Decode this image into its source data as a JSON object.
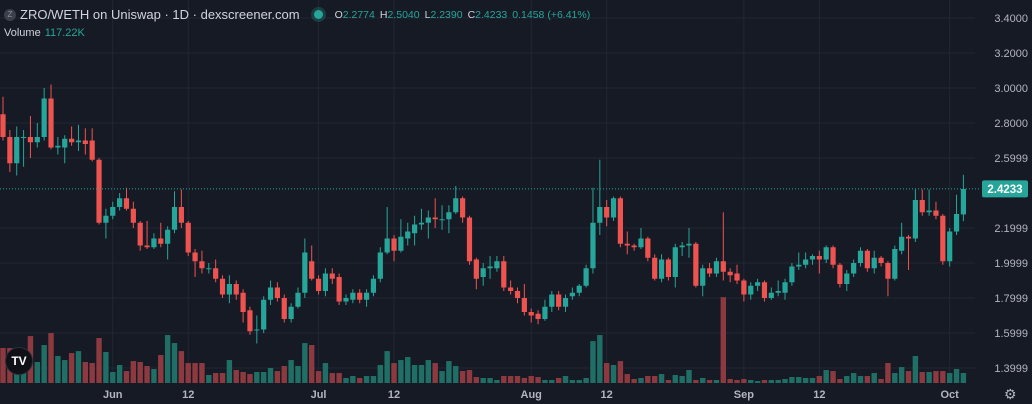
{
  "header": {
    "token_icon": "Z",
    "title": "ZRO/WETH on Uniswap · 1D · dexscreener.com",
    "status": "live",
    "ohlc": {
      "o_label": "O",
      "o": "2.2774",
      "h_label": "H",
      "h": "2.5040",
      "l_label": "L",
      "l": "2.2390",
      "c_label": "C",
      "c": "2.4233",
      "change": "0.1458 (+6.41%)"
    },
    "volume_label": "Volume",
    "volume_value": "117.22K"
  },
  "logo": "TV",
  "settings_icon": "gear-icon",
  "colors": {
    "background": "#161a25",
    "up": "#26a69a",
    "down": "#ef5350",
    "volume_up": "#1f6f66",
    "volume_down": "#8c3a40",
    "grid": "#232733",
    "axis_text": "#b2b5be"
  },
  "chart_data": {
    "type": "candlestick",
    "title": "ZRO/WETH on Uniswap · 1D · dexscreener.com",
    "ylim": [
      1.32,
      3.45
    ],
    "grid": true,
    "y_ticks": [
      "3.4000",
      "3.2000",
      "3.0000",
      "2.8000",
      "2.5999",
      "2.1999",
      "1.9999",
      "1.7999",
      "1.5999",
      "1.3999"
    ],
    "x_ticks": [
      {
        "label": "Jun",
        "date": "Jun 1"
      },
      {
        "label": "12",
        "date": "Jun 12"
      },
      {
        "label": "Jul",
        "date": "Jul 1"
      },
      {
        "label": "12",
        "date": "Jul 12"
      },
      {
        "label": "Aug",
        "date": "Aug 1"
      },
      {
        "label": "12",
        "date": "Aug 12"
      },
      {
        "label": "Sep",
        "date": "Sep 1"
      },
      {
        "label": "12",
        "date": "Sep 12"
      },
      {
        "label": "Oct",
        "date": "Oct 1"
      }
    ],
    "current_price": "2.4233",
    "volume_unit": "K",
    "columns": [
      "date",
      "open",
      "high",
      "low",
      "close",
      "volume"
    ],
    "candles": [
      [
        "May 16",
        2.85,
        2.95,
        2.7,
        2.72,
        410
      ],
      [
        "May 17",
        2.72,
        2.76,
        2.52,
        2.57,
        410
      ],
      [
        "May 18",
        2.57,
        2.78,
        2.5,
        2.72,
        257
      ],
      [
        "May 19",
        2.72,
        2.76,
        2.55,
        2.72,
        293
      ],
      [
        "May 20",
        2.72,
        2.84,
        2.6,
        2.69,
        550
      ],
      [
        "May 21",
        2.69,
        2.8,
        2.66,
        2.72,
        246
      ],
      [
        "May 22",
        2.72,
        3.0,
        2.7,
        2.94,
        445
      ],
      [
        "May 23",
        2.94,
        3.02,
        2.65,
        2.66,
        585
      ],
      [
        "May 24",
        2.66,
        2.72,
        2.62,
        2.67,
        316
      ],
      [
        "May 25",
        2.66,
        2.73,
        2.57,
        2.71,
        269
      ],
      [
        "May 26",
        2.71,
        2.78,
        2.67,
        2.69,
        351
      ],
      [
        "May 27",
        2.69,
        2.79,
        2.64,
        2.7,
        374
      ],
      [
        "May 28",
        2.7,
        2.77,
        2.62,
        2.68,
        246
      ],
      [
        "May 29",
        2.7,
        2.77,
        2.58,
        2.59,
        234
      ],
      [
        "May 30",
        2.59,
        2.6,
        2.22,
        2.23,
        527
      ],
      [
        "May 31",
        2.23,
        2.31,
        2.14,
        2.27,
        363
      ],
      [
        "Jun 1",
        2.27,
        2.35,
        2.25,
        2.32,
        129
      ],
      [
        "Jun 2",
        2.32,
        2.4,
        2.3,
        2.37,
        211
      ],
      [
        "Jun 3",
        2.37,
        2.43,
        2.3,
        2.31,
        140
      ],
      [
        "Jun 4",
        2.31,
        2.35,
        2.2,
        2.23,
        257
      ],
      [
        "Jun 5",
        2.23,
        2.24,
        2.07,
        2.1,
        246
      ],
      [
        "Jun 6",
        2.1,
        2.24,
        2.08,
        2.09,
        199
      ],
      [
        "Jun 7",
        2.09,
        2.17,
        2.08,
        2.14,
        164
      ],
      [
        "Jun 8",
        2.14,
        2.23,
        2.09,
        2.11,
        328
      ],
      [
        "Jun 9",
        2.11,
        2.21,
        2.02,
        2.19,
        562
      ],
      [
        "Jun 10",
        2.19,
        2.41,
        2.17,
        2.32,
        468
      ],
      [
        "Jun 11",
        2.32,
        2.42,
        2.2,
        2.23,
        374
      ],
      [
        "Jun 12",
        2.23,
        2.24,
        2.04,
        2.06,
        234
      ],
      [
        "Jun 13",
        2.06,
        2.08,
        1.92,
        2.01,
        234
      ],
      [
        "Jun 14",
        2.01,
        2.07,
        1.94,
        1.97,
        234
      ],
      [
        "Jun 15",
        1.97,
        2.0,
        1.94,
        1.97,
        94
      ],
      [
        "Jun 16",
        1.97,
        2.02,
        1.89,
        1.91,
        117
      ],
      [
        "Jun 17",
        1.91,
        1.93,
        1.8,
        1.82,
        117
      ],
      [
        "Jun 18",
        1.82,
        1.93,
        1.77,
        1.88,
        269
      ],
      [
        "Jun 19",
        1.88,
        1.9,
        1.79,
        1.82,
        152
      ],
      [
        "Jun 20",
        1.83,
        1.85,
        1.66,
        1.72,
        129
      ],
      [
        "Jun 21",
        1.73,
        1.75,
        1.59,
        1.61,
        105
      ],
      [
        "Jun 22",
        1.62,
        1.7,
        1.54,
        1.62,
        129
      ],
      [
        "Jun 23",
        1.62,
        1.81,
        1.6,
        1.79,
        129
      ],
      [
        "Jun 24",
        1.79,
        1.9,
        1.76,
        1.86,
        176
      ],
      [
        "Jun 25",
        1.86,
        1.89,
        1.78,
        1.8,
        140
      ],
      [
        "Jun 26",
        1.8,
        1.82,
        1.66,
        1.68,
        199
      ],
      [
        "Jun 27",
        1.68,
        1.77,
        1.66,
        1.75,
        269
      ],
      [
        "Jun 28",
        1.75,
        1.86,
        1.74,
        1.83,
        199
      ],
      [
        "Jun 29",
        1.83,
        2.14,
        1.8,
        2.06,
        468
      ],
      [
        "Jun 30",
        2.01,
        2.1,
        1.9,
        1.91,
        445
      ],
      [
        "Jul 1",
        1.91,
        1.93,
        1.82,
        1.84,
        140
      ],
      [
        "Jul 2",
        1.84,
        1.97,
        1.81,
        1.94,
        234
      ],
      [
        "Jul 3",
        1.94,
        1.97,
        1.88,
        1.91,
        117
      ],
      [
        "Jul 4",
        1.92,
        1.94,
        1.76,
        1.78,
        117
      ],
      [
        "Jul 5",
        1.78,
        1.82,
        1.76,
        1.8,
        59
      ],
      [
        "Jul 6",
        1.79,
        1.85,
        1.77,
        1.83,
        82
      ],
      [
        "Jul 7",
        1.83,
        1.85,
        1.77,
        1.79,
        59
      ],
      [
        "Jul 8",
        1.79,
        1.85,
        1.75,
        1.83,
        82
      ],
      [
        "Jul 9",
        1.83,
        1.93,
        1.81,
        1.91,
        82
      ],
      [
        "Jul 10",
        1.91,
        2.09,
        1.89,
        2.06,
        211
      ],
      [
        "Jul 11",
        2.06,
        2.32,
        2.05,
        2.14,
        374
      ],
      [
        "Jul 12",
        2.14,
        2.16,
        2.01,
        2.07,
        234
      ],
      [
        "Jul 13",
        2.07,
        2.25,
        2.06,
        2.15,
        269
      ],
      [
        "Jul 14",
        2.14,
        2.23,
        2.1,
        2.18,
        304
      ],
      [
        "Jul 15",
        2.17,
        2.27,
        2.1,
        2.22,
        211
      ],
      [
        "Jul 16",
        2.22,
        2.31,
        2.19,
        2.23,
        211
      ],
      [
        "Jul 17",
        2.23,
        2.3,
        2.14,
        2.26,
        269
      ],
      [
        "Jul 18",
        2.26,
        2.37,
        2.2,
        2.25,
        234
      ],
      [
        "Jul 19",
        2.25,
        2.33,
        2.19,
        2.25,
        140
      ],
      [
        "Jul 20",
        2.25,
        2.33,
        2.17,
        2.29,
        257
      ],
      [
        "Jul 21",
        2.29,
        2.44,
        2.28,
        2.37,
        199
      ],
      [
        "Jul 22",
        2.37,
        2.38,
        2.23,
        2.26,
        140
      ],
      [
        "Jul 23",
        2.26,
        2.27,
        1.99,
        2.01,
        152
      ],
      [
        "Jul 24",
        2.02,
        2.03,
        1.85,
        1.91,
        70
      ],
      [
        "Jul 25",
        1.92,
        2.0,
        1.87,
        1.97,
        59
      ],
      [
        "Jul 26",
        1.97,
        2.04,
        1.91,
        1.98,
        59
      ],
      [
        "Jul 27",
        1.97,
        2.04,
        1.95,
        2.01,
        35
      ],
      [
        "Jul 28",
        2.01,
        2.04,
        1.84,
        1.86,
        82
      ],
      [
        "Jul 29",
        1.86,
        1.9,
        1.82,
        1.84,
        82
      ],
      [
        "Jul 30",
        1.84,
        1.86,
        1.77,
        1.8,
        82
      ],
      [
        "Jul 31",
        1.8,
        1.88,
        1.7,
        1.72,
        59
      ],
      [
        "Aug 1",
        1.72,
        1.74,
        1.66,
        1.7,
        82
      ],
      [
        "Aug 2",
        1.71,
        1.73,
        1.65,
        1.68,
        70
      ],
      [
        "Aug 3",
        1.68,
        1.79,
        1.67,
        1.75,
        35
      ],
      [
        "Aug 4",
        1.75,
        1.84,
        1.72,
        1.82,
        35
      ],
      [
        "Aug 5",
        1.82,
        1.84,
        1.73,
        1.75,
        59
      ],
      [
        "Aug 6",
        1.75,
        1.82,
        1.72,
        1.8,
        82
      ],
      [
        "Aug 7",
        1.81,
        1.86,
        1.79,
        1.83,
        35
      ],
      [
        "Aug 8",
        1.83,
        1.88,
        1.81,
        1.87,
        35
      ],
      [
        "Aug 9",
        1.87,
        1.99,
        1.86,
        1.97,
        59
      ],
      [
        "Aug 10",
        1.97,
        2.43,
        1.94,
        2.23,
        491
      ],
      [
        "Aug 11",
        2.23,
        2.59,
        2.16,
        2.32,
        562
      ],
      [
        "Aug 12",
        2.32,
        2.36,
        2.21,
        2.26,
        234
      ],
      [
        "Aug 13",
        2.26,
        2.38,
        2.24,
        2.37,
        211
      ],
      [
        "Aug 14",
        2.37,
        2.38,
        2.09,
        2.11,
        257
      ],
      [
        "Aug 15",
        2.11,
        2.18,
        2.05,
        2.1,
        105
      ],
      [
        "Aug 16",
        2.1,
        2.11,
        2.07,
        2.09,
        47
      ],
      [
        "Aug 17",
        2.09,
        2.2,
        2.08,
        2.14,
        59
      ],
      [
        "Aug 18",
        2.14,
        2.15,
        2.01,
        2.03,
        82
      ],
      [
        "Aug 19",
        2.03,
        2.05,
        1.9,
        1.91,
        82
      ],
      [
        "Aug 20",
        1.91,
        2.05,
        1.89,
        2.02,
        105
      ],
      [
        "Aug 21",
        2.02,
        2.03,
        1.9,
        1.92,
        35
      ],
      [
        "Aug 22",
        1.92,
        2.11,
        1.86,
        2.09,
        94
      ],
      [
        "Aug 23",
        2.09,
        2.12,
        2.04,
        2.1,
        82
      ],
      [
        "Aug 24",
        2.1,
        2.2,
        2.03,
        2.11,
        152
      ],
      [
        "Aug 25",
        2.11,
        2.12,
        1.86,
        1.87,
        35
      ],
      [
        "Aug 26",
        1.87,
        1.99,
        1.81,
        1.97,
        59
      ],
      [
        "Aug 27",
        1.97,
        2.0,
        1.92,
        1.94,
        35
      ],
      [
        "Aug 28",
        1.94,
        2.03,
        1.92,
        2.01,
        35
      ],
      [
        "Aug 29",
        2.01,
        2.29,
        1.9,
        1.95,
        1006
      ],
      [
        "Aug 30",
        1.95,
        1.97,
        1.89,
        1.93,
        47
      ],
      [
        "Aug 31",
        1.94,
        1.99,
        1.88,
        1.9,
        35
      ],
      [
        "Sep 1",
        1.9,
        1.91,
        1.78,
        1.82,
        47
      ],
      [
        "Sep 2",
        1.82,
        1.89,
        1.79,
        1.87,
        35
      ],
      [
        "Sep 3",
        1.87,
        1.91,
        1.84,
        1.89,
        23
      ],
      [
        "Sep 4",
        1.89,
        1.9,
        1.78,
        1.8,
        35
      ],
      [
        "Sep 5",
        1.8,
        1.86,
        1.79,
        1.83,
        35
      ],
      [
        "Sep 6",
        1.83,
        1.9,
        1.81,
        1.84,
        35
      ],
      [
        "Sep 7",
        1.83,
        1.91,
        1.79,
        1.89,
        47
      ],
      [
        "Sep 8",
        1.89,
        2.0,
        1.87,
        1.98,
        70
      ],
      [
        "Sep 9",
        1.98,
        2.06,
        1.96,
        1.99,
        70
      ],
      [
        "Sep 10",
        1.99,
        2.06,
        1.97,
        2.02,
        59
      ],
      [
        "Sep 11",
        2.02,
        2.05,
        1.99,
        2.04,
        59
      ],
      [
        "Sep 12",
        2.04,
        2.07,
        1.94,
        2.02,
        82
      ],
      [
        "Sep 13",
        2.02,
        2.1,
        2.0,
        2.09,
        152
      ],
      [
        "Sep 14",
        2.09,
        2.1,
        1.97,
        1.99,
        140
      ],
      [
        "Sep 15",
        1.99,
        2.0,
        1.86,
        1.88,
        47
      ],
      [
        "Sep 16",
        1.88,
        1.96,
        1.84,
        1.94,
        82
      ],
      [
        "Sep 17",
        1.94,
        2.02,
        1.92,
        2.0,
        117
      ],
      [
        "Sep 18",
        2.0,
        2.09,
        1.98,
        2.07,
        82
      ],
      [
        "Sep 19",
        2.07,
        2.08,
        1.95,
        1.97,
        82
      ],
      [
        "Sep 20",
        1.97,
        2.07,
        1.94,
        2.03,
        117
      ],
      [
        "Sep 21",
        2.03,
        2.04,
        1.98,
        2.0,
        47
      ],
      [
        "Sep 22",
        2.0,
        2.01,
        1.81,
        1.91,
        234
      ],
      [
        "Sep 23",
        1.91,
        2.1,
        1.9,
        2.08,
        117
      ],
      [
        "Sep 24",
        2.07,
        2.23,
        2.05,
        2.15,
        187
      ],
      [
        "Sep 25",
        2.15,
        2.16,
        1.96,
        2.14,
        140
      ],
      [
        "Sep 26",
        2.14,
        2.42,
        2.12,
        2.36,
        316
      ],
      [
        "Sep 27",
        2.36,
        2.42,
        2.27,
        2.29,
        129
      ],
      [
        "Sep 28",
        2.29,
        2.42,
        2.27,
        2.3,
        129
      ],
      [
        "Sep 29",
        2.3,
        2.35,
        2.25,
        2.27,
        140
      ],
      [
        "Sep 30",
        2.27,
        2.28,
        1.99,
        2.01,
        140
      ],
      [
        "Oct 1",
        2.01,
        2.2,
        1.98,
        2.18,
        117
      ],
      [
        "Oct 2",
        2.18,
        2.39,
        2.16,
        2.28,
        164
      ],
      [
        "Oct 3",
        2.2774,
        2.504,
        2.239,
        2.4233,
        117.22
      ]
    ]
  }
}
